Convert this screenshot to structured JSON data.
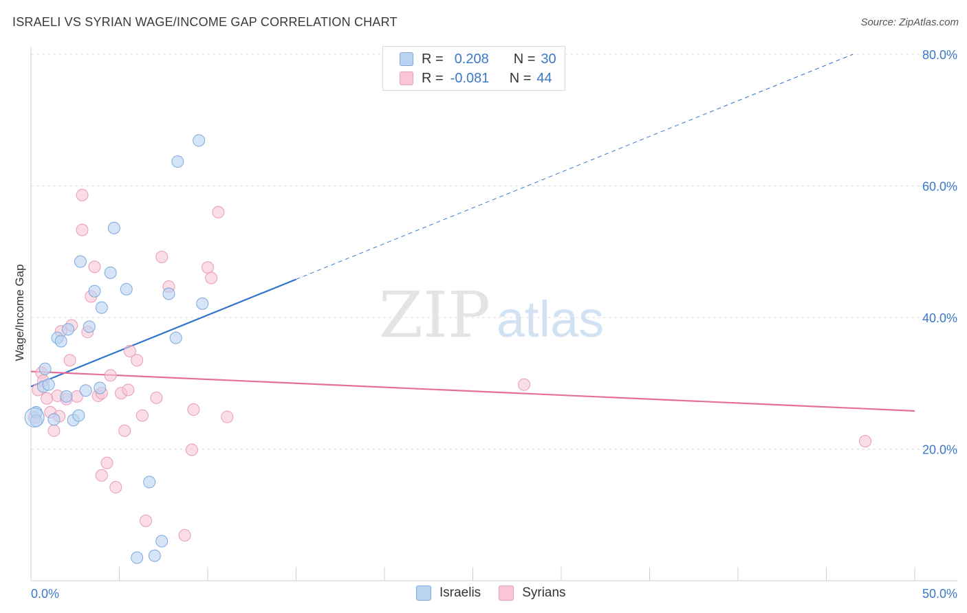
{
  "header": {
    "title": "ISRAELI VS SYRIAN WAGE/INCOME GAP CORRELATION CHART",
    "source": "Source: ZipAtlas.com"
  },
  "watermark": {
    "zip": "ZIP",
    "atlas": "atlas"
  },
  "legend": {
    "rows": [
      {
        "r_label": "R =",
        "r_value": "0.208",
        "n_label": "N =",
        "n_value": "30"
      },
      {
        "r_label": "R =",
        "r_value": "-0.081",
        "n_label": "N =",
        "n_value": "44"
      }
    ]
  },
  "bottom_legend": {
    "israelis": "Israelis",
    "syrians": "Syrians"
  },
  "colors": {
    "israelis_fill": "#b9d3f1",
    "israelis_stroke": "#7aa8dd",
    "israelis_line": "#2f74cc",
    "syrians_fill": "#f8c6d6",
    "syrians_stroke": "#e99ab5",
    "syrians_line": "#e46f98",
    "axis_label": "#3a78c9",
    "grid": "#dcdcdc"
  },
  "chart_data": {
    "type": "scatter",
    "title": "ISRAELI VS SYRIAN WAGE/INCOME GAP CORRELATION CHART",
    "xlabel": "",
    "ylabel": "Wage/Income Gap",
    "xlim": [
      0,
      50
    ],
    "ylim": [
      0,
      80
    ],
    "x_tick_labels": [
      "0.0%",
      "50.0%"
    ],
    "y_ticks": [
      20,
      40,
      60,
      80
    ],
    "y_tick_labels": [
      "20.0%",
      "40.0%",
      "60.0%",
      "80.0%"
    ],
    "grid": true,
    "series": [
      {
        "name": "Israelis",
        "R": 0.208,
        "N": 30,
        "trend": {
          "x0": 0,
          "y0": 29.5,
          "x_solid_end": 15,
          "y_solid_end": 45.8,
          "x1": 46.5,
          "y1": 80
        },
        "points": [
          [
            0.3,
            25.6
          ],
          [
            0.3,
            24.3
          ],
          [
            0.7,
            29.5
          ],
          [
            0.8,
            32.2
          ],
          [
            1.0,
            29.8
          ],
          [
            1.3,
            24.5
          ],
          [
            1.5,
            36.9
          ],
          [
            1.7,
            36.4
          ],
          [
            2.0,
            28.0
          ],
          [
            2.1,
            38.2
          ],
          [
            2.4,
            24.4
          ],
          [
            2.7,
            25.1
          ],
          [
            2.8,
            48.5
          ],
          [
            3.1,
            28.9
          ],
          [
            3.3,
            38.6
          ],
          [
            3.6,
            44.0
          ],
          [
            3.9,
            29.3
          ],
          [
            4.0,
            41.5
          ],
          [
            4.5,
            46.8
          ],
          [
            4.7,
            53.6
          ],
          [
            5.4,
            44.3
          ],
          [
            6.0,
            3.5
          ],
          [
            6.7,
            15.0
          ],
          [
            7.0,
            3.8
          ],
          [
            7.4,
            6.0
          ],
          [
            7.8,
            43.6
          ],
          [
            8.2,
            36.9
          ],
          [
            8.3,
            63.7
          ],
          [
            9.7,
            42.1
          ],
          [
            9.5,
            66.9
          ]
        ]
      },
      {
        "name": "Syrians",
        "R": -0.081,
        "N": 44,
        "trend": {
          "x0": 0,
          "y0": 31.8,
          "x1": 50,
          "y1": 25.8
        },
        "points": [
          [
            0.2,
            24.8
          ],
          [
            0.4,
            29.0
          ],
          [
            0.6,
            31.6
          ],
          [
            0.7,
            30.4
          ],
          [
            0.9,
            27.7
          ],
          [
            1.1,
            25.6
          ],
          [
            1.3,
            22.8
          ],
          [
            1.5,
            28.1
          ],
          [
            1.6,
            25.0
          ],
          [
            1.7,
            37.9
          ],
          [
            2.0,
            27.6
          ],
          [
            2.2,
            33.5
          ],
          [
            2.3,
            38.8
          ],
          [
            2.6,
            28.0
          ],
          [
            2.9,
            58.6
          ],
          [
            2.9,
            53.3
          ],
          [
            3.2,
            37.8
          ],
          [
            3.4,
            43.2
          ],
          [
            3.6,
            47.7
          ],
          [
            3.8,
            28.1
          ],
          [
            4.0,
            28.5
          ],
          [
            4.0,
            16.0
          ],
          [
            4.3,
            17.9
          ],
          [
            4.5,
            31.2
          ],
          [
            4.8,
            14.2
          ],
          [
            5.1,
            28.5
          ],
          [
            5.3,
            22.8
          ],
          [
            5.5,
            29.0
          ],
          [
            5.6,
            34.9
          ],
          [
            6.0,
            33.5
          ],
          [
            6.3,
            25.1
          ],
          [
            6.5,
            9.1
          ],
          [
            7.1,
            27.8
          ],
          [
            7.4,
            49.2
          ],
          [
            7.8,
            44.7
          ],
          [
            8.7,
            6.9
          ],
          [
            9.2,
            26.0
          ],
          [
            9.1,
            19.9
          ],
          [
            10.0,
            47.6
          ],
          [
            10.2,
            46.0
          ],
          [
            10.6,
            56.0
          ],
          [
            11.1,
            24.9
          ],
          [
            27.9,
            29.8
          ],
          [
            47.2,
            21.2
          ]
        ]
      }
    ]
  }
}
